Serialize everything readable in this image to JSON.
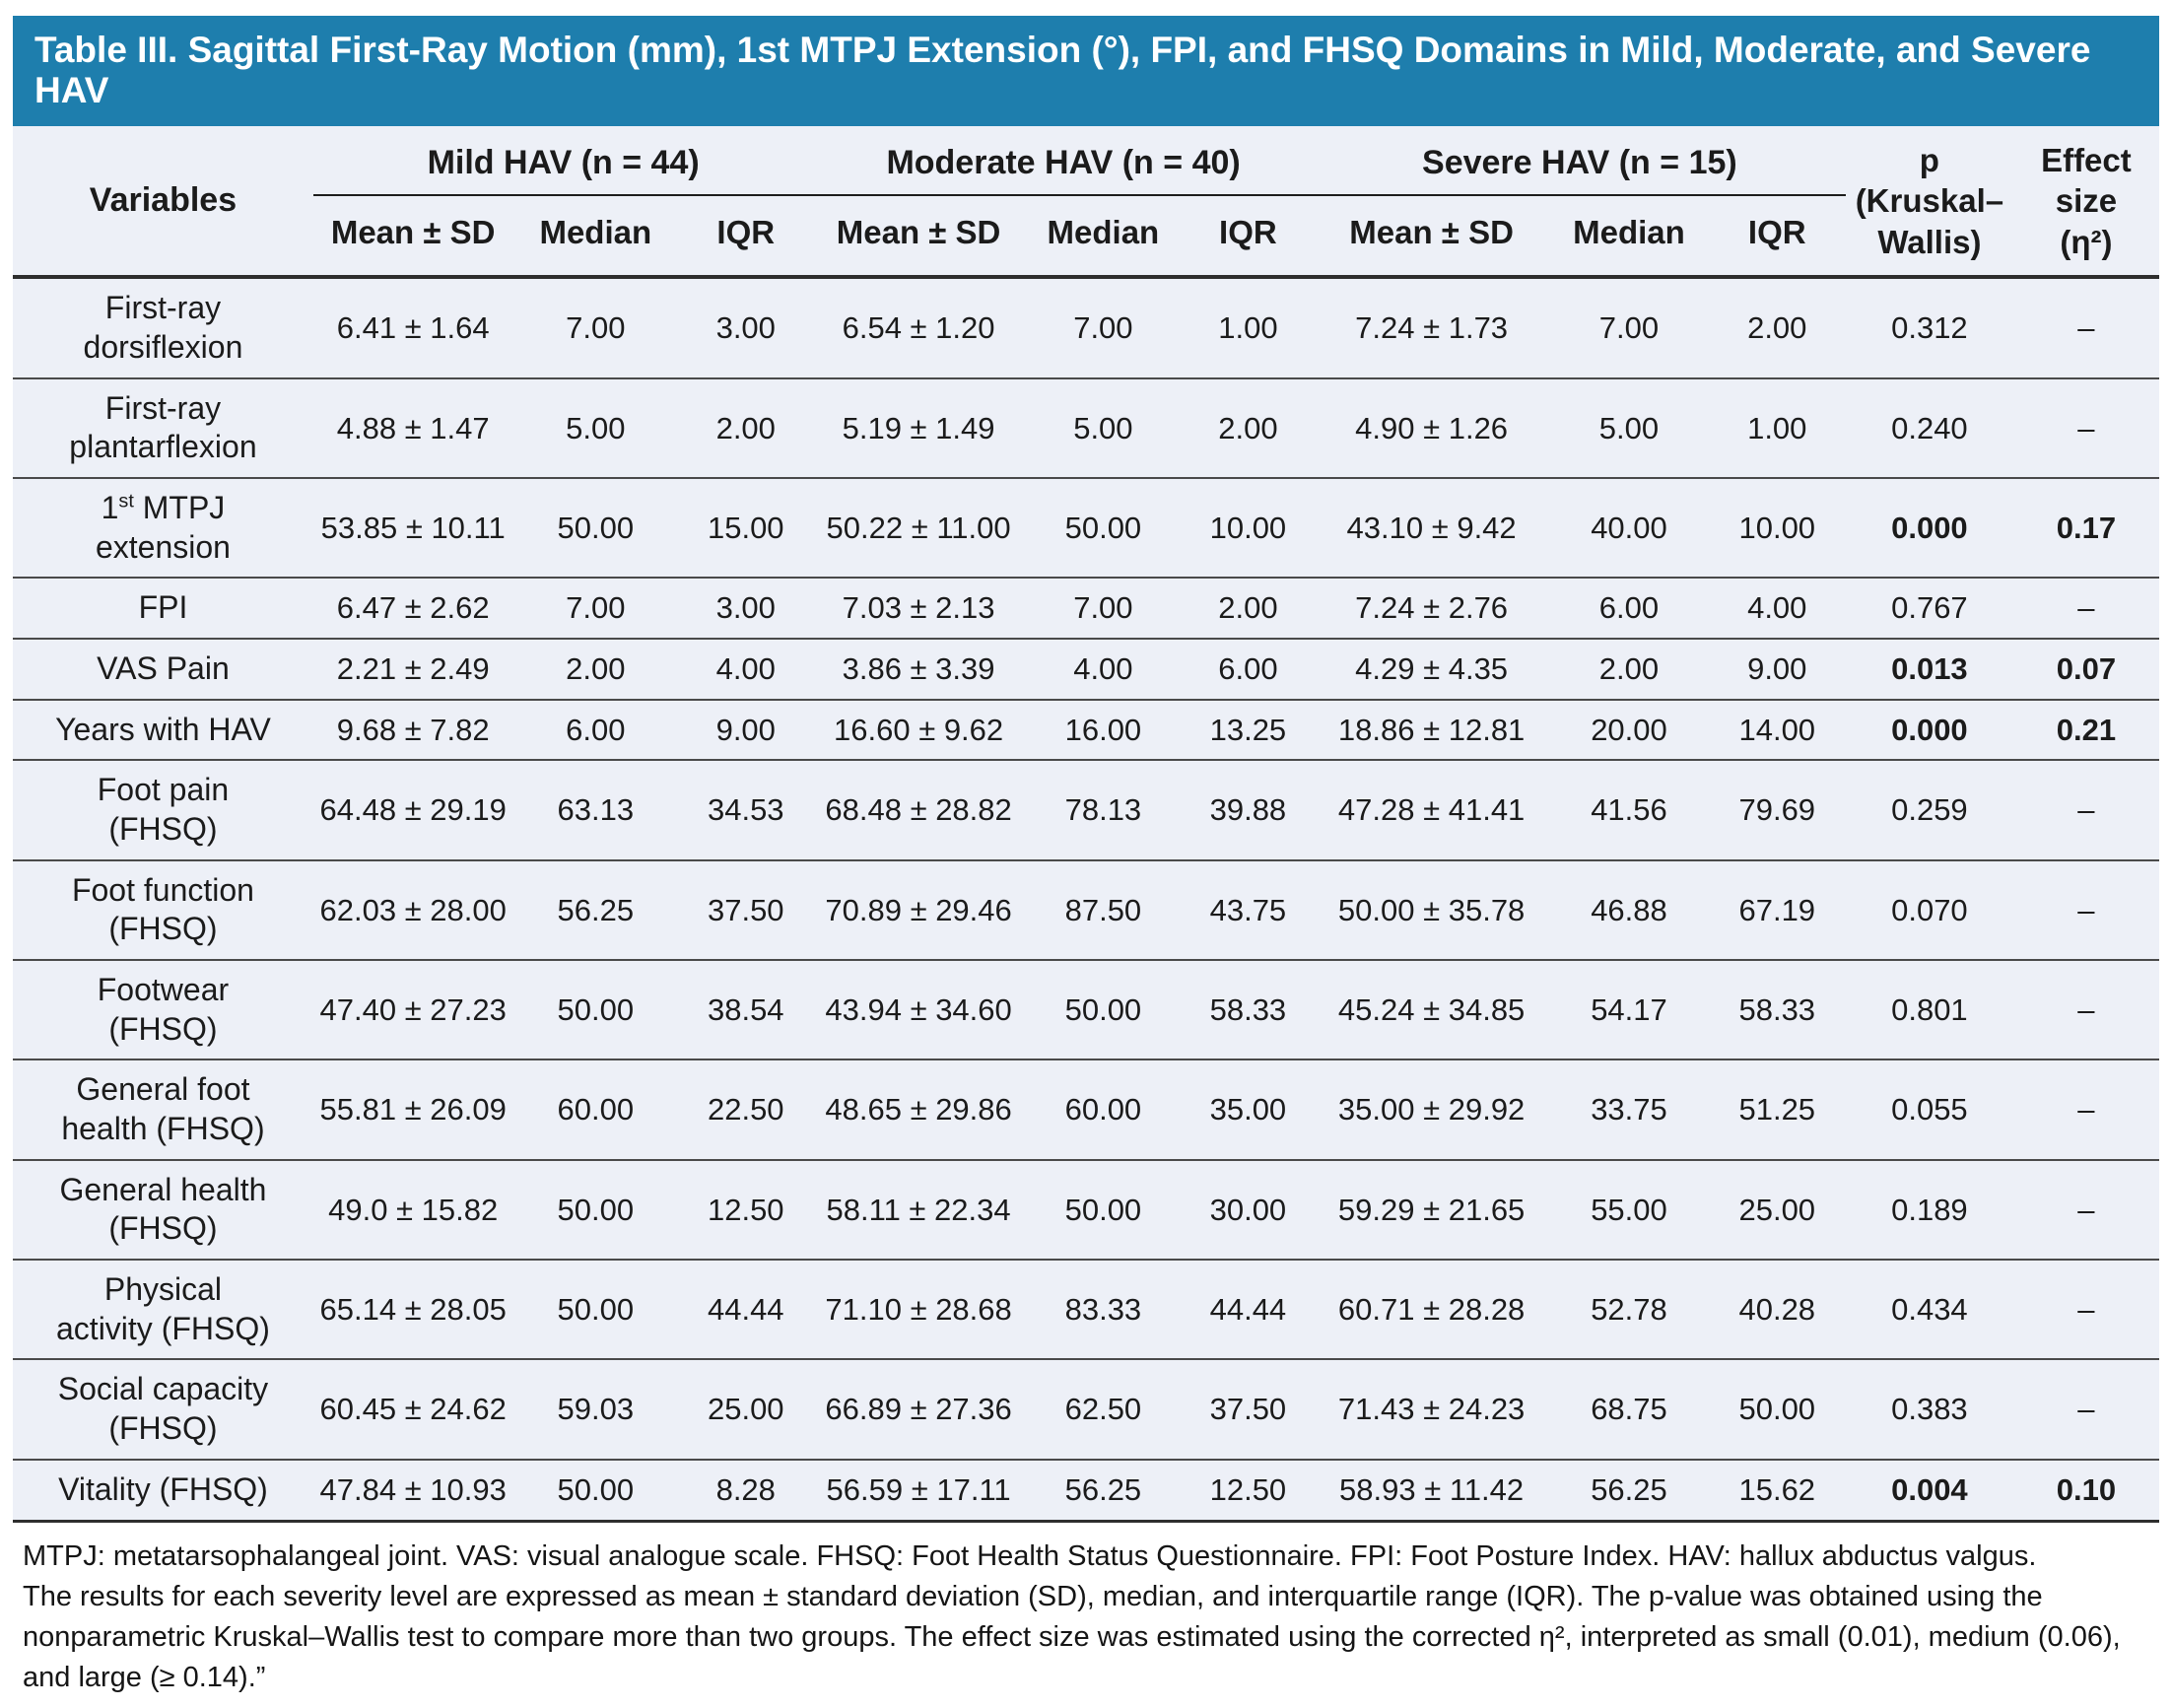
{
  "colors": {
    "title_bar_bg": "#1e7ead",
    "title_text": "#ffffff",
    "table_bg": "#edf0f7",
    "rule_dark": "#2e2e2e",
    "rule_row": "#4a4a4a"
  },
  "title": "Table III. Sagittal First-Ray Motion (mm), 1st MTPJ Extension (°), FPI, and FHSQ Domains in Mild, Moderate, and Severe HAV",
  "header": {
    "variables_label": "Variables",
    "groups": [
      {
        "label": "Mild HAV (n = 44)"
      },
      {
        "label": "Moderate HAV (n = 40)"
      },
      {
        "label": "Severe HAV (n = 15)"
      }
    ],
    "subheaders": [
      "Mean ± SD",
      "Median",
      "IQR"
    ],
    "p_label": "p\n(Kruskal–\nWallis)",
    "effect_label": "Effect\nsize\n(η²)"
  },
  "rows": [
    {
      "variable": "First-ray\ndorsiflexion",
      "mild": [
        "6.41 ± 1.64",
        "7.00",
        "3.00"
      ],
      "moderate": [
        "6.54 ± 1.20",
        "7.00",
        "1.00"
      ],
      "severe": [
        "7.24 ± 1.73",
        "7.00",
        "2.00"
      ],
      "p": "0.312",
      "effect": "–",
      "significant": false
    },
    {
      "variable": "First-ray\nplantarflexion",
      "mild": [
        "4.88 ± 1.47",
        "5.00",
        "2.00"
      ],
      "moderate": [
        "5.19 ± 1.49",
        "5.00",
        "2.00"
      ],
      "severe": [
        "4.90 ± 1.26",
        "5.00",
        "1.00"
      ],
      "p": "0.240",
      "effect": "–",
      "significant": false
    },
    {
      "variable": "1^st^ MTPJ\nextension",
      "mild": [
        "53.85 ± 10.11",
        "50.00",
        "15.00"
      ],
      "moderate": [
        "50.22 ± 11.00",
        "50.00",
        "10.00"
      ],
      "severe": [
        "43.10 ± 9.42",
        "40.00",
        "10.00"
      ],
      "p": "0.000",
      "effect": "0.17",
      "significant": true
    },
    {
      "variable": "FPI",
      "mild": [
        "6.47 ± 2.62",
        "7.00",
        "3.00"
      ],
      "moderate": [
        "7.03 ± 2.13",
        "7.00",
        "2.00"
      ],
      "severe": [
        "7.24 ± 2.76",
        "6.00",
        "4.00"
      ],
      "p": "0.767",
      "effect": "–",
      "significant": false
    },
    {
      "variable": "VAS Pain",
      "mild": [
        "2.21 ± 2.49",
        "2.00",
        "4.00"
      ],
      "moderate": [
        "3.86 ± 3.39",
        "4.00",
        "6.00"
      ],
      "severe": [
        "4.29 ± 4.35",
        "2.00",
        "9.00"
      ],
      "p": "0.013",
      "effect": "0.07",
      "significant": true
    },
    {
      "variable": "Years with HAV",
      "mild": [
        "9.68 ± 7.82",
        "6.00",
        "9.00"
      ],
      "moderate": [
        "16.60 ± 9.62",
        "16.00",
        "13.25"
      ],
      "severe": [
        "18.86 ± 12.81",
        "20.00",
        "14.00"
      ],
      "p": "0.000",
      "effect": "0.21",
      "significant": true
    },
    {
      "variable": "Foot pain\n(FHSQ)",
      "mild": [
        "64.48 ± 29.19",
        "63.13",
        "34.53"
      ],
      "moderate": [
        "68.48 ± 28.82",
        "78.13",
        "39.88"
      ],
      "severe": [
        "47.28 ± 41.41",
        "41.56",
        "79.69"
      ],
      "p": "0.259",
      "effect": "–",
      "significant": false
    },
    {
      "variable": "Foot function\n(FHSQ)",
      "mild": [
        "62.03 ± 28.00",
        "56.25",
        "37.50"
      ],
      "moderate": [
        "70.89 ± 29.46",
        "87.50",
        "43.75"
      ],
      "severe": [
        "50.00 ± 35.78",
        "46.88",
        "67.19"
      ],
      "p": "0.070",
      "effect": "–",
      "significant": false
    },
    {
      "variable": "Footwear\n(FHSQ)",
      "mild": [
        "47.40 ± 27.23",
        "50.00",
        "38.54"
      ],
      "moderate": [
        "43.94 ± 34.60",
        "50.00",
        "58.33"
      ],
      "severe": [
        "45.24 ± 34.85",
        "54.17",
        "58.33"
      ],
      "p": "0.801",
      "effect": "–",
      "significant": false
    },
    {
      "variable": "General foot\nhealth (FHSQ)",
      "mild": [
        "55.81 ± 26.09",
        "60.00",
        "22.50"
      ],
      "moderate": [
        "48.65 ± 29.86",
        "60.00",
        "35.00"
      ],
      "severe": [
        "35.00 ± 29.92",
        "33.75",
        "51.25"
      ],
      "p": "0.055",
      "effect": "–",
      "significant": false
    },
    {
      "variable": "General health\n(FHSQ)",
      "mild": [
        "49.0 ± 15.82",
        "50.00",
        "12.50"
      ],
      "moderate": [
        "58.11 ± 22.34",
        "50.00",
        "30.00"
      ],
      "severe": [
        "59.29 ± 21.65",
        "55.00",
        "25.00"
      ],
      "p": "0.189",
      "effect": "–",
      "significant": false
    },
    {
      "variable": "Physical\nactivity (FHSQ)",
      "mild": [
        "65.14 ± 28.05",
        "50.00",
        "44.44"
      ],
      "moderate": [
        "71.10 ± 28.68",
        "83.33",
        "44.44"
      ],
      "severe": [
        "60.71 ± 28.28",
        "52.78",
        "40.28"
      ],
      "p": "0.434",
      "effect": "–",
      "significant": false
    },
    {
      "variable": "Social capacity\n(FHSQ)",
      "mild": [
        "60.45 ± 24.62",
        "59.03",
        "25.00"
      ],
      "moderate": [
        "66.89 ± 27.36",
        "62.50",
        "37.50"
      ],
      "severe": [
        "71.43 ± 24.23",
        "68.75",
        "50.00"
      ],
      "p": "0.383",
      "effect": "–",
      "significant": false
    },
    {
      "variable": "Vitality (FHSQ)",
      "mild": [
        "47.84 ± 10.93",
        "50.00",
        "8.28"
      ],
      "moderate": [
        "56.59 ± 17.11",
        "56.25",
        "12.50"
      ],
      "severe": [
        "58.93 ± 11.42",
        "56.25",
        "15.62"
      ],
      "p": "0.004",
      "effect": "0.10",
      "significant": true
    }
  ],
  "footnotes": [
    "MTPJ: metatarsophalangeal joint. VAS: visual analogue scale. FHSQ: Foot Health Status Questionnaire. FPI: Foot Posture Index. HAV: hallux abductus valgus.",
    "The results for each severity level are expressed as mean ± standard deviation (SD), median, and interquartile range (IQR). The p-value was obtained using the nonparametric Kruskal–Wallis test to compare more than two groups. The effect size was estimated using the corrected η², interpreted as small (0.01), medium (0.06), and large (≥ 0.14).”"
  ]
}
